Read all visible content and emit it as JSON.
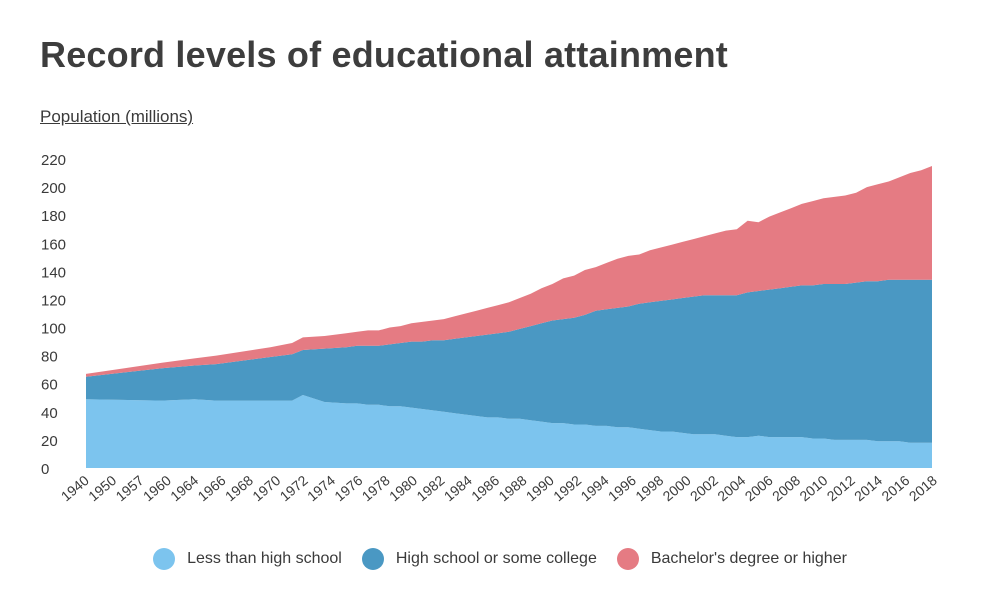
{
  "title": "Record levels of educational attainment",
  "chart_data": {
    "type": "area",
    "stacked": true,
    "title": "Record levels of educational attainment",
    "ylabel": "Population (millions)",
    "xlabel": "",
    "ylim": [
      0,
      220
    ],
    "yticks": [
      0,
      20,
      40,
      60,
      80,
      100,
      120,
      140,
      160,
      180,
      200,
      220
    ],
    "grid": false,
    "legend_position": "bottom",
    "x": [
      1940,
      1947,
      1950,
      1952,
      1957,
      1959,
      1960,
      1962,
      1964,
      1965,
      1966,
      1967,
      1968,
      1969,
      1970,
      1971,
      1972,
      1973,
      1974,
      1975,
      1976,
      1977,
      1978,
      1979,
      1980,
      1981,
      1982,
      1983,
      1984,
      1985,
      1986,
      1987,
      1988,
      1989,
      1990,
      1991,
      1992,
      1993,
      1994,
      1995,
      1996,
      1997,
      1998,
      1999,
      2000,
      2001,
      2002,
      2003,
      2004,
      2005,
      2006,
      2007,
      2008,
      2009,
      2010,
      2011,
      2012,
      2013,
      2014,
      2015,
      2016,
      2017,
      2018
    ],
    "x_tick_labels": [
      "1940",
      "1950",
      "1957",
      "1960",
      "1964",
      "1966",
      "1968",
      "1970",
      "1972",
      "1974",
      "1976",
      "1978",
      "1980",
      "1982",
      "1984",
      "1986",
      "1988",
      "1990",
      "1992",
      "1994",
      "1996",
      "1998",
      "2000",
      "2002",
      "2004",
      "2006",
      "2008",
      "2010",
      "2012",
      "2014",
      "2016",
      "2018"
    ],
    "series": [
      {
        "name": "Less than high school",
        "color": "#7cc4ee",
        "values": [
          49,
          48,
          49,
          48,
          48,
          48,
          52,
          47,
          46,
          46,
          45,
          45,
          44,
          44,
          43,
          42,
          41,
          40,
          39,
          38,
          37,
          36,
          36,
          35,
          35,
          34,
          33,
          32,
          32,
          31,
          31,
          30,
          30,
          29,
          29,
          28,
          27,
          26,
          26,
          25,
          24,
          24,
          24,
          23,
          22,
          22,
          23,
          22,
          22,
          22,
          22,
          21,
          21,
          20,
          20,
          20,
          20,
          19,
          19,
          19,
          18,
          18,
          18
        ]
      },
      {
        "name": "High school or some college",
        "color": "#4a98c3",
        "values": [
          16,
          23,
          24,
          26,
          31,
          33,
          32,
          38,
          40,
          41,
          42,
          42,
          44,
          45,
          47,
          48,
          50,
          51,
          53,
          55,
          57,
          59,
          60,
          62,
          64,
          67,
          70,
          73,
          74,
          76,
          78,
          82,
          83,
          85,
          86,
          89,
          91,
          93,
          94,
          96,
          98,
          99,
          99,
          100,
          101,
          103,
          103,
          105,
          106,
          107,
          108,
          109,
          110,
          111,
          111,
          112,
          113,
          114,
          115,
          115,
          116,
          116,
          116
        ]
      },
      {
        "name": "Bachelor's degree or higher",
        "color": "#e57b83",
        "values": [
          2,
          4,
          5,
          6,
          7,
          8,
          9,
          9,
          10,
          10,
          11,
          11,
          12,
          12,
          13,
          14,
          14,
          15,
          16,
          17,
          18,
          19,
          20,
          21,
          22,
          23,
          25,
          26,
          29,
          30,
          32,
          31,
          33,
          35,
          36,
          35,
          37,
          38,
          39,
          40,
          41,
          42,
          44,
          46,
          47,
          51,
          49,
          52,
          54,
          56,
          58,
          60,
          61,
          62,
          63,
          64,
          67,
          69,
          70,
          73,
          76,
          78,
          81
        ]
      }
    ]
  }
}
